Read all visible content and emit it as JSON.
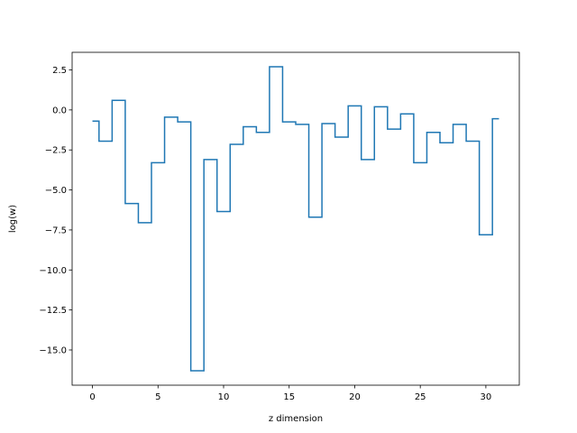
{
  "chart_data": {
    "type": "line",
    "drawstyle": "steps-mid",
    "title": "",
    "xlabel": "z dimension",
    "ylabel": "log(w)",
    "xlim": [
      -1.55,
      32.55
    ],
    "ylim": [
      -17.2,
      3.6
    ],
    "x_ticks": [
      0,
      5,
      10,
      15,
      20,
      25,
      30
    ],
    "x_tick_labels": [
      "0",
      "5",
      "10",
      "15",
      "20",
      "25",
      "30"
    ],
    "y_ticks": [
      2.5,
      0,
      -2.5,
      -5,
      -7.5,
      -10,
      -12.5,
      -15
    ],
    "y_tick_labels": [
      "2.5",
      "0.0",
      "−2.5",
      "−5.0",
      "−7.5",
      "−10.0",
      "−12.5",
      "−15.0"
    ],
    "grid": false,
    "legend": "none",
    "color": "#1f77b4",
    "x": [
      0,
      1,
      2,
      3,
      4,
      5,
      6,
      7,
      8,
      9,
      10,
      11,
      12,
      13,
      14,
      15,
      16,
      17,
      18,
      19,
      20,
      21,
      22,
      23,
      24,
      25,
      26,
      27,
      28,
      29,
      30,
      31
    ],
    "y": [
      -0.7,
      -1.95,
      0.6,
      -5.85,
      -7.05,
      -3.3,
      -0.45,
      -0.75,
      -16.3,
      -3.1,
      -6.35,
      -2.15,
      -1.05,
      -1.4,
      2.7,
      -0.75,
      -0.9,
      -6.7,
      -0.85,
      -1.7,
      0.25,
      -3.1,
      0.2,
      -1.2,
      -0.25,
      -3.3,
      -1.4,
      -2.05,
      -0.9,
      -1.95,
      -7.8,
      -0.55
    ]
  }
}
